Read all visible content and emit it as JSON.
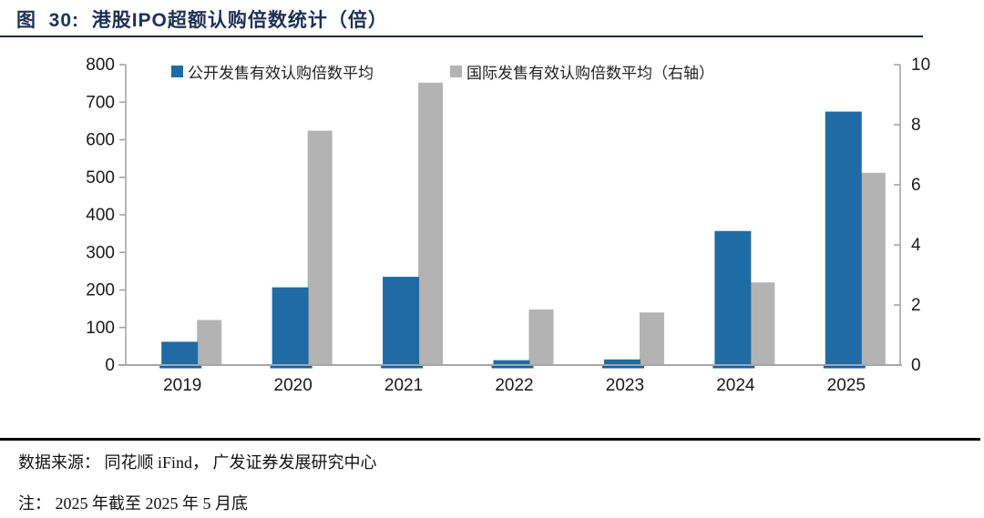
{
  "figure": {
    "title": "图  30:  港股IPO超额认购倍数统计（倍）",
    "source_note": "数据来源： 同花顺 iFind， 广发证券发展研究中心",
    "footnote": "注： 2025 年截至 2025 年 5 月底"
  },
  "colors": {
    "title_navy": "#1F3054",
    "bar_blue": "#1F6BA5",
    "bar_blue_dark_base": "#1B5E9B",
    "bar_gray": "#B3B3B3",
    "axis_gray": "#A6A6A6",
    "label_black": "#1A1A1A"
  },
  "chart_data": {
    "type": "bar",
    "title": "港股IPO超额认购倍数统计（倍）",
    "categories": [
      "2019",
      "2020",
      "2021",
      "2022",
      "2023",
      "2024",
      "2025"
    ],
    "series": [
      {
        "name": "公开发售有效认购倍数平均",
        "axis": "left",
        "color": "#1F6BA5",
        "values": [
          62,
          207,
          235,
          13,
          15,
          357,
          675
        ]
      },
      {
        "name": "国际发售有效认购倍数平均（右轴）",
        "axis": "right",
        "color": "#B3B3B3",
        "values": [
          1.5,
          7.8,
          9.4,
          1.85,
          1.75,
          2.75,
          6.4
        ]
      }
    ],
    "left_axis": {
      "min": 0,
      "max": 800,
      "step": 100,
      "tick_labels": [
        "0",
        "100",
        "200",
        "300",
        "400",
        "500",
        "600",
        "700",
        "800"
      ]
    },
    "right_axis": {
      "min": 0,
      "max": 10,
      "step": 2,
      "tick_labels": [
        "0",
        "2",
        "4",
        "6",
        "8",
        "10"
      ]
    },
    "grid": false,
    "legend_position": "top-center",
    "xlabel": "",
    "ylabel": ""
  }
}
